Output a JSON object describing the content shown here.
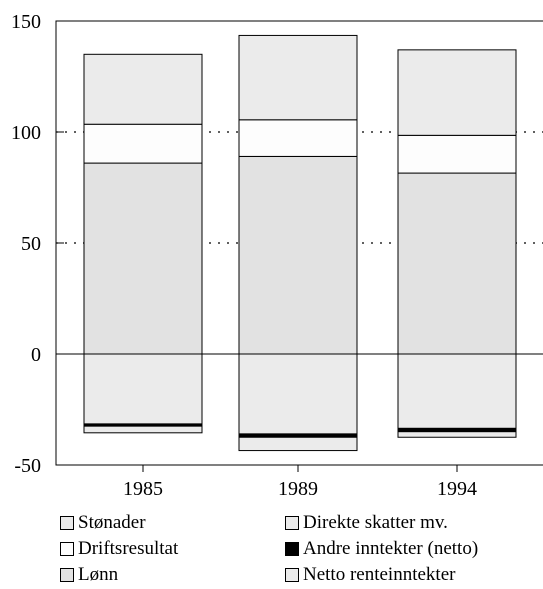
{
  "chart_data": {
    "type": "bar",
    "stacked": true,
    "categories": [
      "1985",
      "1989",
      "1994"
    ],
    "ylim": [
      -50,
      150
    ],
    "yticks": [
      150,
      100,
      50,
      0,
      -50
    ],
    "ytick_labels": [
      "150",
      "100",
      "50",
      "0",
      "-50"
    ],
    "grid": "dotted at 50 and 100",
    "legend_position": "bottom",
    "series": [
      {
        "name": "Lønn",
        "values": [
          86,
          89,
          81.5
        ],
        "color": "#e2e2e2"
      },
      {
        "name": "Driftsresultat",
        "values": [
          17.5,
          16.5,
          17
        ],
        "color": "#fdfdfd"
      },
      {
        "name": "Stønader",
        "values": [
          31.5,
          38,
          38.5
        ],
        "color": "#ebebeb"
      },
      {
        "name": "Direkte skatter mv.",
        "values": [
          -31.5,
          -36,
          -33.5
        ],
        "color": "#ebebeb"
      },
      {
        "name": "Andre inntekter (netto)",
        "values": [
          -1,
          -1.5,
          -1.5
        ],
        "color": "#000000"
      },
      {
        "name": "Netto renteinntekter",
        "values": [
          -3,
          -6,
          -2.5
        ],
        "color": "#ebebeb"
      }
    ]
  },
  "legend": [
    {
      "label": "Stønader",
      "color": "#ebebeb"
    },
    {
      "label": "Direkte skatter mv.",
      "color": "#ebebeb"
    },
    {
      "label": "Driftsresultat",
      "color": "#fdfdfd"
    },
    {
      "label": "Andre inntekter (netto)",
      "color": "#000000"
    },
    {
      "label": "Lønn",
      "color": "#e2e2e2"
    },
    {
      "label": "Netto renteinntekter",
      "color": "#ebebeb"
    }
  ]
}
